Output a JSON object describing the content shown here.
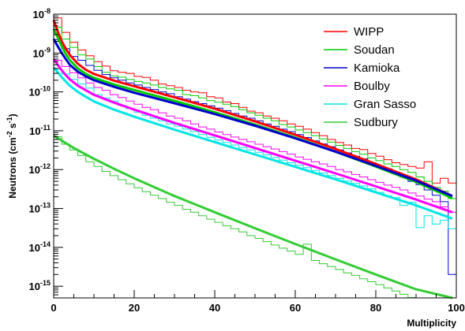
{
  "chart_data": {
    "type": "line",
    "xlabel": "Multiplicity",
    "ylabel": "Neutrons (cm",
    "ylabel_sup1": "-2",
    "ylabel_mid": " s",
    "ylabel_sup2": "-1",
    "ylabel_end": ")",
    "xlim": [
      0,
      100
    ],
    "ylim": [
      5e-16,
      1e-08
    ],
    "yscale": "log",
    "x_ticks": [
      {
        "value": 0,
        "label": "0"
      },
      {
        "value": 20,
        "label": "20"
      },
      {
        "value": 40,
        "label": "40"
      },
      {
        "value": 60,
        "label": "60"
      },
      {
        "value": 80,
        "label": "80"
      },
      {
        "value": 100,
        "label": "100"
      }
    ],
    "y_ticks": [
      {
        "value": 1e-15,
        "base": "10",
        "exp": "-15"
      },
      {
        "value": 1e-14,
        "base": "10",
        "exp": "-14"
      },
      {
        "value": 1e-13,
        "base": "10",
        "exp": "-13"
      },
      {
        "value": 1e-12,
        "base": "10",
        "exp": "-12"
      },
      {
        "value": 1e-11,
        "base": "10",
        "exp": "-11"
      },
      {
        "value": 1e-10,
        "base": "10",
        "exp": "-10"
      },
      {
        "value": 1e-09,
        "base": "10",
        "exp": "-9"
      },
      {
        "value": 1e-08,
        "base": "10",
        "exp": "-8"
      }
    ],
    "grid": false,
    "legend_position": "top-right",
    "series": [
      {
        "name": "WIPP",
        "color": "#ff0000",
        "fit": [
          [
            0,
            7e-09
          ],
          [
            1,
            3.6e-09
          ],
          [
            2,
            2e-09
          ],
          [
            3,
            1.3e-09
          ],
          [
            4,
            9e-10
          ],
          [
            6,
            5.3e-10
          ],
          [
            8,
            3.7e-10
          ],
          [
            10,
            2.9e-10
          ],
          [
            15,
            1.95e-10
          ],
          [
            20,
            1.4e-10
          ],
          [
            30,
            7.3e-11
          ],
          [
            40,
            3.7e-11
          ],
          [
            50,
            1.75e-11
          ],
          [
            60,
            7.9e-12
          ],
          [
            70,
            3.4e-12
          ],
          [
            80,
            1.4e-12
          ],
          [
            90,
            5.6e-13
          ],
          [
            99,
            2.1e-13
          ]
        ],
        "hist": [
          8e-09,
          3.4e-09,
          1.9e-09,
          1.2e-09,
          8.5e-10,
          6e-10,
          4.6e-10,
          3.5e-10,
          3.2e-10,
          3e-10,
          2.5e-10,
          2.35e-10,
          2e-10,
          1.6e-10,
          1.45e-10,
          1.3e-10,
          1.1e-10,
          1e-10,
          9.5e-11,
          7.5e-11,
          7e-11,
          5.5e-11,
          5e-11,
          4e-11,
          3.2e-11,
          2.9e-11,
          2.4e-11,
          2.1e-11,
          1.8e-11,
          1.5e-11,
          1.3e-11,
          1.1e-11,
          9e-12,
          7.5e-12,
          6e-12,
          5e-12,
          4.3e-12,
          3.5e-12,
          3.3e-12,
          2.6e-12,
          2.2e-12,
          1.8e-12,
          1.5e-12,
          1.35e-12,
          1.2e-12,
          1.1e-12,
          1.6e-12,
          4.5e-13,
          6e-13,
          4.5e-13
        ]
      },
      {
        "name": "Soudan",
        "color": "#00cc00",
        "fit": [
          [
            0,
            4.2e-09
          ],
          [
            1,
            2.5e-09
          ],
          [
            2,
            1.5e-09
          ],
          [
            3,
            9.5e-10
          ],
          [
            4,
            6.6e-10
          ],
          [
            6,
            4e-10
          ],
          [
            8,
            2.9e-10
          ],
          [
            10,
            2.3e-10
          ],
          [
            15,
            1.55e-10
          ],
          [
            20,
            1.12e-10
          ],
          [
            30,
            5.9e-11
          ],
          [
            40,
            3e-11
          ],
          [
            50,
            1.45e-11
          ],
          [
            60,
            6.7e-12
          ],
          [
            70,
            2.9e-12
          ],
          [
            80,
            1.2e-12
          ],
          [
            90,
            4.8e-13
          ],
          [
            99,
            1.85e-13
          ]
        ],
        "hist": [
          4.6e-09,
          2.3e-09,
          1.4e-09,
          9e-10,
          7e-10,
          4.5e-10,
          3.2e-10,
          2.6e-10,
          2.4e-10,
          2.1e-10,
          1.85e-10,
          1.7e-10,
          1.5e-10,
          1.3e-10,
          1.2e-10,
          1.1e-10,
          8.5e-11,
          8e-11,
          7e-11,
          6e-11,
          5.4e-11,
          4.8e-11,
          4.2e-11,
          3.5e-11,
          2.9e-11,
          2.5e-11,
          2.1e-11,
          1.8e-11,
          1.45e-11,
          1.25e-11,
          1.05e-11,
          9e-12,
          7.5e-12,
          6.2e-12,
          5.1e-12,
          4.2e-12,
          3.5e-12,
          2.9e-12,
          2.5e-12,
          2e-12,
          1.7e-12,
          1.4e-12,
          1.2e-12,
          1e-12,
          8.5e-13,
          6.5e-13,
          5e-13,
          3.5e-13,
          2.8e-13,
          1.8e-13
        ]
      },
      {
        "name": "Kamioka",
        "color": "#0000cc",
        "fit": [
          [
            0,
            2.3e-09
          ],
          [
            1,
            1.5e-09
          ],
          [
            2,
            1e-09
          ],
          [
            3,
            7e-10
          ],
          [
            4,
            5e-10
          ],
          [
            6,
            3.3e-10
          ],
          [
            8,
            2.5e-10
          ],
          [
            10,
            2e-10
          ],
          [
            15,
            1.35e-10
          ],
          [
            20,
            9.5e-11
          ],
          [
            30,
            5.1e-11
          ],
          [
            40,
            2.7e-11
          ],
          [
            50,
            1.35e-11
          ],
          [
            60,
            6.4e-12
          ],
          [
            70,
            2.9e-12
          ],
          [
            80,
            1.25e-12
          ],
          [
            90,
            5.2e-13
          ],
          [
            99,
            2.1e-13
          ]
        ],
        "hist": [
          2.2e-09,
          1.3e-09,
          8.2e-10,
          6.5e-10,
          4.8e-10,
          3.6e-10,
          2.8e-10,
          2.3e-10,
          2e-10,
          1.7e-10,
          1.5e-10,
          1.3e-10,
          1.15e-10,
          1e-10,
          9e-11,
          7.5e-11,
          6.5e-11,
          5.6e-11,
          5e-11,
          4.4e-11,
          3.8e-11,
          3.3e-11,
          2.8e-11,
          2.4e-11,
          2.1e-11,
          1.8e-11,
          1.5e-11,
          1.3e-11,
          1.1e-11,
          9.5e-12,
          8e-12,
          6.7e-12,
          5.5e-12,
          4.6e-12,
          3.9e-12,
          3.2e-12,
          2.7e-12,
          2.2e-12,
          1.9e-12,
          1.5e-12,
          1.25e-12,
          1.05e-12,
          8.5e-13,
          6.5e-13,
          5e-13,
          4.1e-13,
          3e-13,
          2.2e-13,
          1.5e-13,
          2e-15
        ]
      },
      {
        "name": "Boulby",
        "color": "#ff00ff",
        "fit": [
          [
            0,
            7e-10
          ],
          [
            1,
            5e-10
          ],
          [
            2,
            3.6e-10
          ],
          [
            3,
            2.7e-10
          ],
          [
            4,
            2.1e-10
          ],
          [
            6,
            1.45e-10
          ],
          [
            8,
            1.1e-10
          ],
          [
            10,
            8.4e-11
          ],
          [
            15,
            5.3e-11
          ],
          [
            20,
            3.5e-11
          ],
          [
            30,
            1.6e-11
          ],
          [
            40,
            7.6e-12
          ],
          [
            50,
            3.6e-12
          ],
          [
            60,
            1.7e-12
          ],
          [
            70,
            8e-13
          ],
          [
            80,
            3.7e-13
          ],
          [
            90,
            1.7e-13
          ],
          [
            99,
            8e-14
          ]
        ],
        "hist": [
          6.5e-10,
          4.5e-10,
          3.1e-10,
          2.3e-10,
          1.7e-10,
          1.3e-10,
          1.1e-10,
          8.5e-11,
          7.2e-11,
          5.8e-11,
          4.8e-11,
          4e-11,
          3.5e-11,
          2.9e-11,
          2.4e-11,
          2.1e-11,
          1.8e-11,
          1.5e-11,
          1.25e-11,
          1.1e-11,
          9.3e-12,
          8e-12,
          6.9e-12,
          6e-12,
          5.2e-12,
          4.5e-12,
          3.9e-12,
          3.4e-12,
          2.9e-12,
          2.5e-12,
          2.1e-12,
          1.85e-12,
          1.6e-12,
          1.4e-12,
          1.2e-12,
          1e-12,
          8.8e-13,
          7.5e-13,
          6.5e-13,
          5.5e-13,
          4.7e-13,
          4e-13,
          3.5e-13,
          3e-13,
          2.5e-13,
          2.1e-13,
          1.75e-13,
          1.5e-13,
          1.1e-13,
          8e-14
        ]
      },
      {
        "name": "Gran Sasso",
        "color": "#00e5e5",
        "fit": [
          [
            0,
            4.2e-10
          ],
          [
            1,
            3.2e-10
          ],
          [
            2,
            2.4e-10
          ],
          [
            3,
            1.85e-10
          ],
          [
            4,
            1.45e-10
          ],
          [
            6,
            1e-10
          ],
          [
            8,
            7.5e-11
          ],
          [
            10,
            5.7e-11
          ],
          [
            15,
            3.5e-11
          ],
          [
            20,
            2.3e-11
          ],
          [
            30,
            1.07e-11
          ],
          [
            40,
            5.1e-12
          ],
          [
            50,
            2.45e-12
          ],
          [
            60,
            1.18e-12
          ],
          [
            70,
            5.6e-13
          ],
          [
            80,
            2.6e-13
          ],
          [
            90,
            1.2e-13
          ],
          [
            99,
            5.5e-14
          ]
        ],
        "hist": [
          3.8e-10,
          2.9e-10,
          2.1e-10,
          1.6e-10,
          1.25e-10,
          8.5e-11,
          7e-11,
          5.8e-11,
          4.5e-11,
          3.7e-11,
          3e-11,
          2.5e-11,
          2.1e-11,
          1.8e-11,
          1.5e-11,
          1.3e-11,
          1.1e-11,
          9.5e-12,
          8e-12,
          6.8e-12,
          5.8e-12,
          5e-12,
          4.3e-12,
          3.7e-12,
          3.2e-12,
          2.8e-12,
          2.4e-12,
          2.05e-12,
          1.75e-12,
          1.5e-12,
          1.3e-12,
          1.12e-12,
          9.5e-13,
          8.2e-13,
          7e-13,
          6e-13,
          5.1e-13,
          4.4e-13,
          3.8e-13,
          3.2e-13,
          2.6e-13,
          2.1e-13,
          1.9e-13,
          1.2e-13,
          1.45e-13,
          3.2e-14,
          6.5e-14,
          4e-14,
          5e-14,
          3e-14
        ]
      },
      {
        "name": "Sudbury",
        "color": "#33cc33",
        "fit": [
          [
            0,
            7.5e-12
          ],
          [
            5,
            3.6e-12
          ],
          [
            10,
            1.9e-12
          ],
          [
            15,
            1.05e-12
          ],
          [
            20,
            6e-13
          ],
          [
            30,
            2.1e-13
          ],
          [
            40,
            8e-14
          ],
          [
            50,
            3.1e-14
          ],
          [
            60,
            1.22e-14
          ],
          [
            70,
            4.9e-15
          ],
          [
            80,
            2e-15
          ],
          [
            90,
            8.3e-16
          ],
          [
            99,
            4.4e-16
          ]
        ],
        "hist": [
          7e-12,
          4.5e-12,
          3.2e-12,
          2.3e-12,
          1.6e-12,
          1.2e-12,
          9e-13,
          7e-13,
          5.5e-13,
          4.3e-13,
          3.4e-13,
          2.7e-13,
          2.2e-13,
          1.8e-13,
          1.45e-13,
          1.2e-13,
          9.5e-14,
          8e-14,
          6.5e-14,
          5.3e-14,
          4.4e-14,
          3.6e-14,
          3e-14,
          2.5e-14,
          2e-14,
          1.7e-14,
          1.4e-14,
          1.15e-14,
          9.5e-15,
          8e-15,
          6.6e-15,
          1.2e-14,
          4.6e-15,
          3.8e-15,
          3.2e-15,
          2.7e-15,
          2.2e-15,
          1.9e-15,
          1.55e-15,
          1.3e-15,
          1.1e-15,
          9e-16,
          7.5e-16,
          6.2e-16,
          5.1e-16,
          4.3e-16,
          3.6e-16,
          3.1e-16,
          2.6e-16,
          2.2e-16
        ]
      }
    ]
  }
}
